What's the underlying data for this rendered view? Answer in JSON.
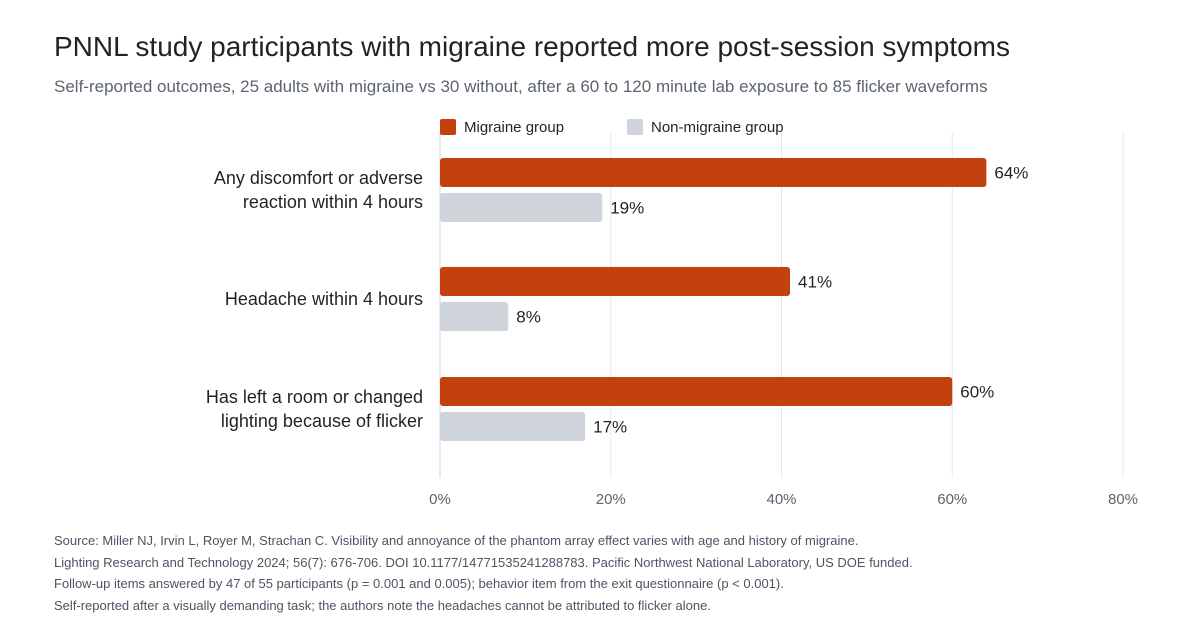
{
  "title": "PNNL study participants with migraine reported more post-session symptoms",
  "subtitle": "Self-reported outcomes, 25 adults with migraine vs 30 without, after a 60 to 120 minute lab exposure to 85 flicker waveforms",
  "colors": {
    "migraine": "#c2410c",
    "non_migraine": "#cfd4db",
    "grid": "#e5e7eb",
    "axis": "#d1d5db"
  },
  "chart_data": {
    "type": "bar",
    "orientation": "horizontal",
    "categories": [
      [
        "Any discomfort or adverse",
        "reaction within 4 hours"
      ],
      [
        "Headache within 4 hours"
      ],
      [
        "Has left a room or changed",
        "lighting because of flicker"
      ]
    ],
    "series": [
      {
        "name": "Migraine group",
        "values": [
          64,
          41,
          60
        ],
        "labels": [
          "64%",
          "41%",
          "60%"
        ]
      },
      {
        "name": "Non-migraine group",
        "values": [
          19,
          8,
          17
        ],
        "labels": [
          "19%",
          "8%",
          "17%"
        ]
      }
    ],
    "xlim": [
      0,
      80
    ],
    "xticks": [
      0,
      20,
      40,
      60,
      80
    ],
    "xtick_labels": [
      "0%",
      "20%",
      "40%",
      "60%",
      "80%"
    ],
    "grid": true,
    "legend": "top"
  },
  "source": {
    "lines": [
      "Source: Miller NJ, Irvin L, Royer M, Strachan C. Visibility and annoyance of the phantom array effect varies with age and history of migraine.",
      "Lighting Research and Technology 2024; 56(7): 676-706. DOI 10.1177/14771535241288783. Pacific Northwest National Laboratory, US DOE funded.",
      "Follow-up items answered by 47 of 55 participants (p = 0.001 and 0.005); behavior item from the exit questionnaire (p < 0.001).",
      "Self-reported after a visually demanding task; the authors note the headaches cannot be attributed to flicker alone."
    ]
  }
}
